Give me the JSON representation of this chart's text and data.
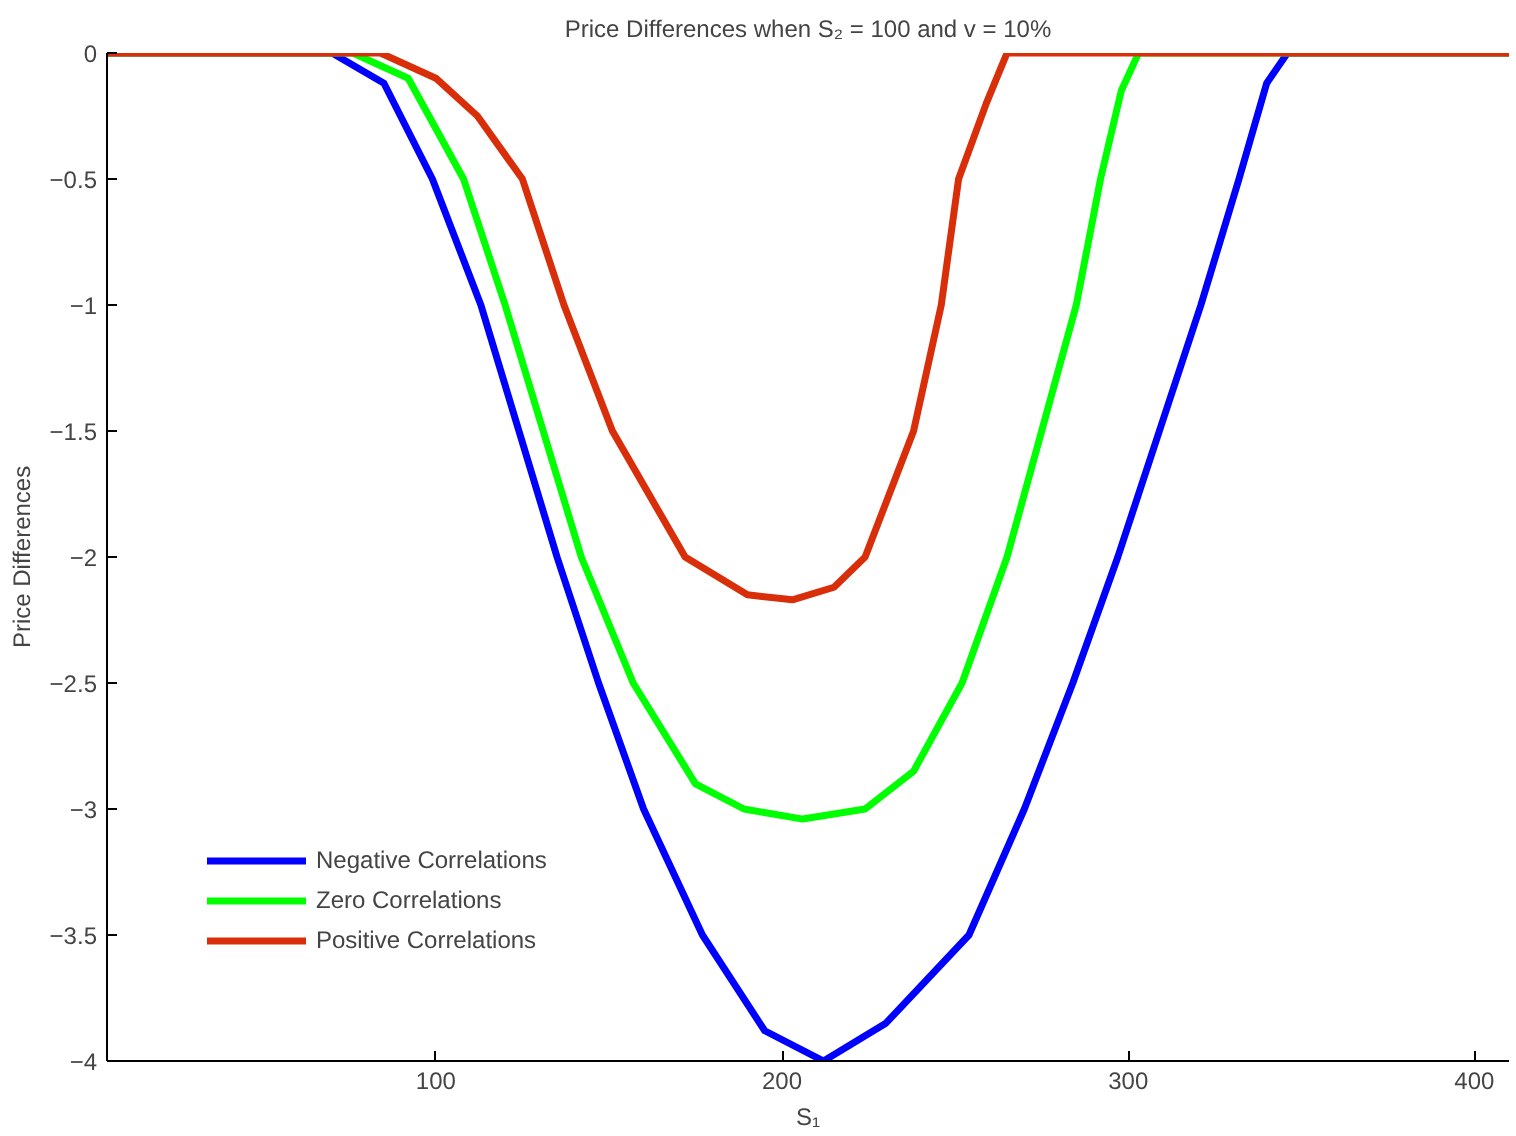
{
  "chart_data": {
    "type": "line",
    "title": "Price Differences when S₂ = 100 and v = 10%",
    "xlabel": "S₁",
    "ylabel": "Price Differences",
    "xlim": [
      5,
      410
    ],
    "xticks": [
      100,
      200,
      300,
      400
    ],
    "ylim": [
      -4,
      0
    ],
    "yticks": [
      -4,
      -3.5,
      -3,
      -2.5,
      -2,
      -1.5,
      -1,
      -0.5,
      0
    ],
    "grid": false,
    "legend": "bottom left",
    "line_style": "solid",
    "marker": "none",
    "series": [
      {
        "name": "Negative Correlations",
        "color": "#0000ff",
        "x": [
          5,
          70,
          85,
          99,
          113,
          124,
          135,
          147,
          160,
          177,
          195,
          212,
          230,
          254,
          270,
          284,
          297,
          309,
          321,
          332,
          340,
          346,
          410
        ],
        "values": [
          0,
          0,
          -0.12,
          -0.5,
          -1,
          -1.5,
          -2,
          -2.5,
          -3,
          -3.5,
          -3.88,
          -4,
          -3.85,
          -3.5,
          -3,
          -2.5,
          -2,
          -1.5,
          -1,
          -0.5,
          -0.12,
          0,
          0
        ]
      },
      {
        "name": "Zero Correlations",
        "color": "#00ff00",
        "x": [
          5,
          76,
          92,
          108,
          120,
          131,
          142,
          157,
          175,
          189,
          206,
          224,
          238,
          252,
          265,
          275,
          285,
          292,
          298,
          303,
          410
        ],
        "values": [
          0,
          0,
          -0.1,
          -0.5,
          -1,
          -1.5,
          -2,
          -2.5,
          -2.9,
          -3.0,
          -3.04,
          -3.0,
          -2.85,
          -2.5,
          -2,
          -1.5,
          -1,
          -0.5,
          -0.15,
          0,
          0
        ]
      },
      {
        "name": "Positive Correlations",
        "color": "#d92e0a",
        "x": [
          5,
          84,
          100,
          112,
          125,
          137,
          151,
          172,
          190,
          203,
          215,
          224,
          238,
          246,
          251,
          259,
          265,
          410
        ],
        "values": [
          0,
          0,
          -0.1,
          -0.25,
          -0.5,
          -1,
          -1.5,
          -2,
          -2.15,
          -2.17,
          -2.12,
          -2,
          -1.5,
          -1,
          -0.5,
          -0.2,
          0,
          0
        ]
      }
    ]
  }
}
